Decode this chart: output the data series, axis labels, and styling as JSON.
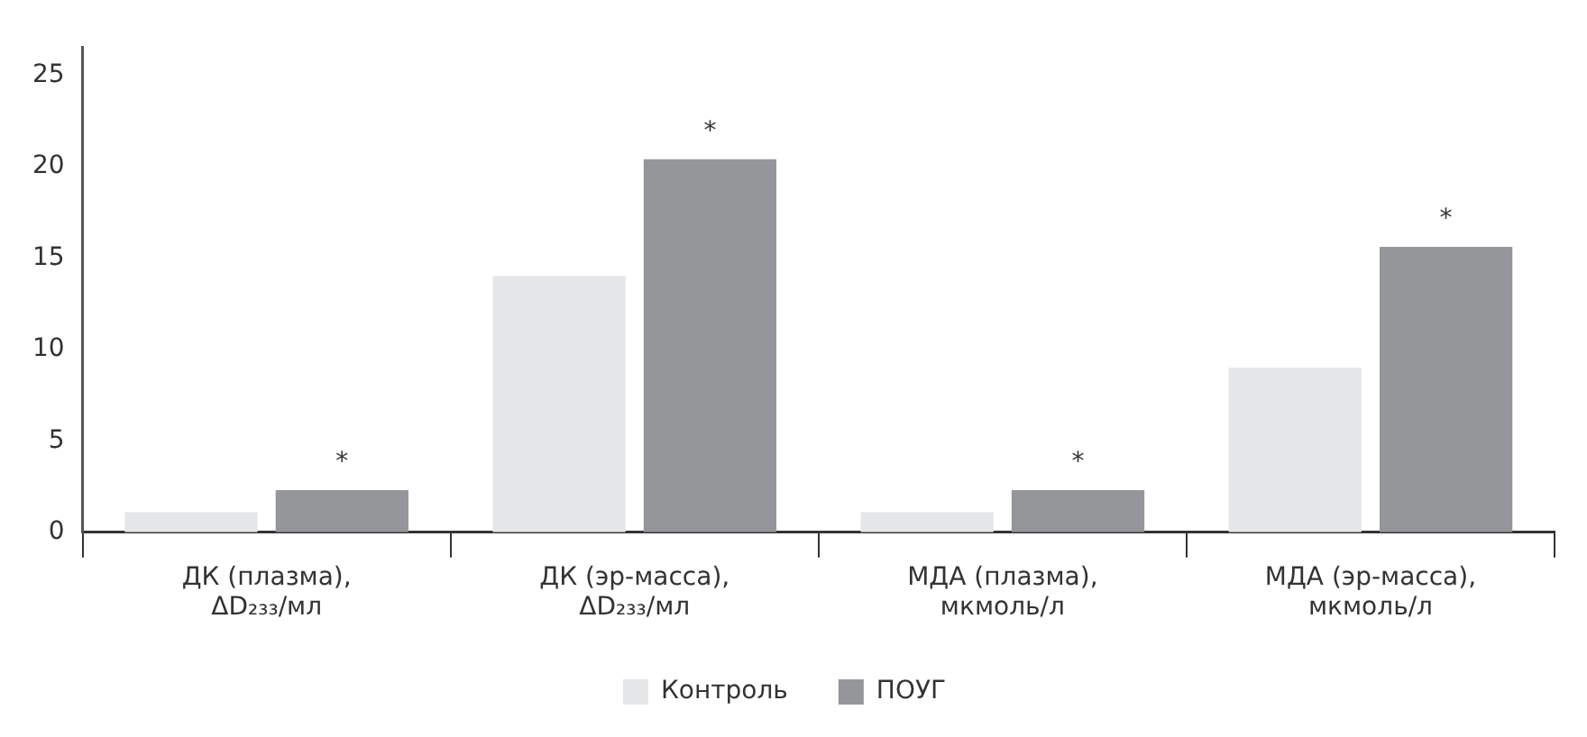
{
  "chart_data": {
    "type": "bar",
    "categories": [
      "ДК (плазма), ΔD₂₃₃/мл",
      "ДК (эр-масса), ΔD₂₃₃/мл",
      "МДА (плазма), мкмоль/л",
      "МДА (эр-масса), мкмоль/л"
    ],
    "series": [
      {
        "name": "Контроль",
        "color": "#e5e6e8",
        "values": [
          1.1,
          14.0,
          1.1,
          9.0
        ]
      },
      {
        "name": "ПОУГ",
        "color": "#959699",
        "values": [
          2.3,
          20.4,
          2.3,
          15.6
        ],
        "value_labels": [
          "*",
          "*",
          "*",
          "*"
        ]
      }
    ],
    "ylim": [
      0,
      26.5
    ],
    "yticks": [
      0,
      5,
      10,
      15,
      20,
      25
    ],
    "grid": false,
    "legend": "bottom"
  }
}
